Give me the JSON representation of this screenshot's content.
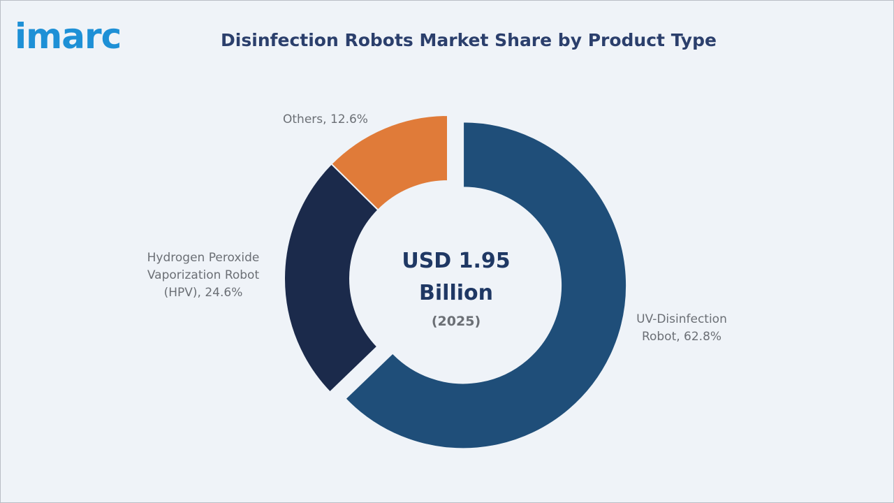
{
  "logo": "imarc",
  "chart_data": {
    "type": "donut",
    "title": "Disinfection Robots Market Share by Product Type",
    "values": [
      62.8,
      24.6,
      12.6
    ],
    "value_labels": [
      "UV-Disinfection Robot, 62.8%",
      "Hydrogen Peroxide Vaporization Robot (HPV), 24.6%",
      "Others, 12.6%"
    ],
    "colors": [
      "#1f4e79",
      "#1b2a4b",
      "#e07b39"
    ],
    "center_text": "USD 1.95 Billion",
    "center_subtext": "(2025)"
  }
}
